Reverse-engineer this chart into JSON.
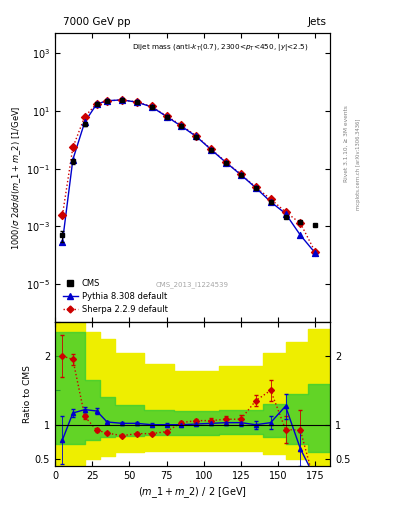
{
  "title_left": "7000 GeV pp",
  "title_right": "Jets",
  "cms_label": "CMS_2013_I1224539",
  "ylabel_main": "1000/σ 2dσ/d(m_1 + m_2) [1/GeV]",
  "ylabel_ratio": "Ratio to CMS",
  "xlabel": "(m_1 + m_2) / 2 [GeV]",
  "xlim": [
    0,
    185
  ],
  "ylim_main": [
    5e-07,
    5000.0
  ],
  "ylim_ratio": [
    0.4,
    2.5
  ],
  "cms_x": [
    5,
    12,
    20,
    28,
    35,
    45,
    55,
    65,
    75,
    85,
    95,
    105,
    115,
    125,
    135,
    145,
    155,
    165,
    175
  ],
  "cms_y": [
    0.0005,
    0.18,
    3.5,
    17.0,
    22.0,
    24.0,
    20.0,
    14.0,
    6.5,
    3.0,
    1.3,
    0.45,
    0.16,
    0.06,
    0.022,
    0.007,
    0.0022,
    0.0014,
    0.0011
  ],
  "cms_yerr_lo": [
    0.0002,
    0.03,
    0.4,
    1.0,
    1.0,
    0.9,
    0.7,
    0.5,
    0.25,
    0.12,
    0.05,
    0.018,
    0.006,
    0.0025,
    0.0009,
    0.0003,
    0.00011,
    7e-05,
    5e-05
  ],
  "cms_yerr_hi": [
    0.0002,
    0.03,
    0.4,
    1.0,
    1.0,
    0.9,
    0.7,
    0.5,
    0.25,
    0.12,
    0.05,
    0.018,
    0.006,
    0.0025,
    0.0009,
    0.0003,
    0.00011,
    7e-05,
    5e-05
  ],
  "pythia_x": [
    5,
    12,
    20,
    28,
    35,
    45,
    55,
    65,
    75,
    85,
    95,
    105,
    115,
    125,
    135,
    145,
    155,
    165,
    175
  ],
  "pythia_y": [
    0.0003,
    0.21,
    4.2,
    17.5,
    23.0,
    24.5,
    20.5,
    14.0,
    6.5,
    3.0,
    1.32,
    0.46,
    0.165,
    0.062,
    0.022,
    0.0072,
    0.0028,
    0.0005,
    0.00012
  ],
  "sherpa_x": [
    5,
    12,
    20,
    28,
    35,
    45,
    55,
    65,
    75,
    85,
    95,
    105,
    115,
    125,
    135,
    145,
    155,
    165,
    175
  ],
  "sherpa_y": [
    0.0025,
    0.55,
    6.5,
    18.0,
    22.5,
    24.5,
    20.8,
    14.5,
    6.8,
    3.2,
    1.38,
    0.48,
    0.172,
    0.065,
    0.023,
    0.009,
    0.0032,
    0.0013,
    0.00013
  ],
  "pythia_ratio_x": [
    5,
    12,
    20,
    28,
    35,
    45,
    55,
    65,
    75,
    85,
    95,
    105,
    115,
    125,
    135,
    145,
    155,
    165,
    175
  ],
  "pythia_ratio_y": [
    0.78,
    1.17,
    1.22,
    1.2,
    1.04,
    1.02,
    1.02,
    1.0,
    1.0,
    1.0,
    1.01,
    1.02,
    1.03,
    1.03,
    1.0,
    1.03,
    1.27,
    0.65,
    0.22
  ],
  "pythia_ratio_err": [
    0.35,
    0.06,
    0.04,
    0.04,
    0.02,
    0.02,
    0.02,
    0.02,
    0.02,
    0.02,
    0.02,
    0.03,
    0.04,
    0.05,
    0.06,
    0.09,
    0.18,
    0.25,
    0.15
  ],
  "sherpa_ratio_x": [
    5,
    12,
    20,
    28,
    35,
    45,
    55,
    65,
    75,
    85,
    95,
    105,
    115,
    125,
    135,
    145,
    155,
    165,
    175
  ],
  "sherpa_ratio_y": [
    2.0,
    1.95,
    1.12,
    0.92,
    0.88,
    0.84,
    0.87,
    0.87,
    0.9,
    1.03,
    1.06,
    1.06,
    1.08,
    1.08,
    1.35,
    1.5,
    0.93,
    0.92,
    0.12
  ],
  "sherpa_ratio_err": [
    0.3,
    0.08,
    0.04,
    0.03,
    0.02,
    0.02,
    0.02,
    0.02,
    0.02,
    0.03,
    0.03,
    0.04,
    0.05,
    0.06,
    0.08,
    0.15,
    0.2,
    0.3,
    0.08
  ],
  "band_x_edges": [
    0,
    10,
    20,
    30,
    40,
    60,
    80,
    110,
    140,
    155,
    170,
    185
  ],
  "green_band_low": [
    0.72,
    0.72,
    0.78,
    0.82,
    0.84,
    0.85,
    0.85,
    0.86,
    0.82,
    0.72,
    0.6,
    0.6
  ],
  "green_band_high": [
    2.35,
    2.35,
    1.65,
    1.4,
    1.28,
    1.22,
    1.2,
    1.22,
    1.3,
    1.45,
    1.6,
    1.6
  ],
  "yellow_band_low": [
    0.42,
    0.42,
    0.5,
    0.55,
    0.6,
    0.62,
    0.62,
    0.62,
    0.58,
    0.5,
    0.42,
    0.42
  ],
  "yellow_band_high": [
    2.5,
    2.5,
    2.35,
    2.25,
    2.05,
    1.88,
    1.78,
    1.85,
    2.05,
    2.2,
    2.4,
    2.4
  ],
  "cms_color": "#000000",
  "pythia_color": "#0000cc",
  "sherpa_color": "#cc0000",
  "green_color": "#33cc33",
  "yellow_color": "#eeee00",
  "rivet_label": "Rivet 3.1.10, ≥ 3M events",
  "mcplots_label": "mcplots.cern.ch [arXiv:1306.3436]"
}
